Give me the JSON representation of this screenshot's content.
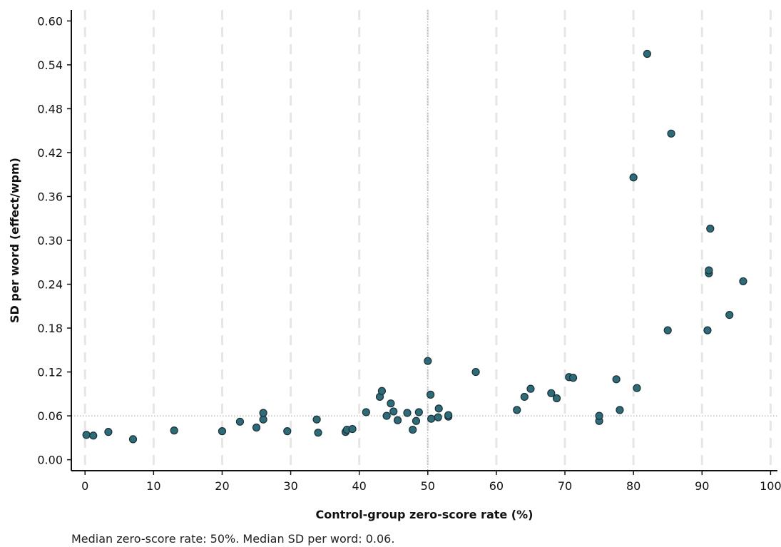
{
  "chart_data": {
    "type": "scatter",
    "xlabel": "Control-group zero-score rate (%)",
    "ylabel": "SD per word (effect/wpm)",
    "xlim": [
      -2,
      101
    ],
    "ylim": [
      -0.015,
      0.615
    ],
    "x_ticks": [
      0,
      10,
      20,
      30,
      40,
      50,
      60,
      70,
      80,
      90,
      100
    ],
    "x_tick_labels": [
      "0",
      "10",
      "20",
      "30",
      "40",
      "50",
      "60",
      "70",
      "80",
      "90",
      "100"
    ],
    "y_ticks": [
      0.0,
      0.06,
      0.12,
      0.18,
      0.24,
      0.3,
      0.36,
      0.42,
      0.48,
      0.54,
      0.6
    ],
    "y_tick_labels": [
      "0.00",
      "0.06",
      "0.12",
      "0.18",
      "0.24",
      "0.30",
      "0.36",
      "0.42",
      "0.48",
      "0.54",
      "0.60"
    ],
    "grid": "vertical dashed at x ticks",
    "reference_lines": {
      "median_x": 50,
      "median_y": 0.06
    },
    "point_color": "#2e6b78",
    "point_edge_color": "#1a2f36",
    "caption": "Median zero-score rate: 50%. Median SD per word: 0.06.",
    "points": [
      [
        0.2,
        0.034
      ],
      [
        1.2,
        0.033
      ],
      [
        3.4,
        0.038
      ],
      [
        7.0,
        0.028
      ],
      [
        13.0,
        0.04
      ],
      [
        20.0,
        0.039
      ],
      [
        22.6,
        0.052
      ],
      [
        25.0,
        0.044
      ],
      [
        26.0,
        0.055
      ],
      [
        26.0,
        0.064
      ],
      [
        29.5,
        0.039
      ],
      [
        33.8,
        0.055
      ],
      [
        34.0,
        0.037
      ],
      [
        38.0,
        0.038
      ],
      [
        38.2,
        0.041
      ],
      [
        39.0,
        0.042
      ],
      [
        41.0,
        0.065
      ],
      [
        43.0,
        0.086
      ],
      [
        43.3,
        0.094
      ],
      [
        44.0,
        0.06
      ],
      [
        44.6,
        0.077
      ],
      [
        45.0,
        0.066
      ],
      [
        45.6,
        0.054
      ],
      [
        47.0,
        0.064
      ],
      [
        47.8,
        0.041
      ],
      [
        48.3,
        0.053
      ],
      [
        48.7,
        0.065
      ],
      [
        50.0,
        0.135
      ],
      [
        50.4,
        0.089
      ],
      [
        50.5,
        0.056
      ],
      [
        51.5,
        0.058
      ],
      [
        51.6,
        0.07
      ],
      [
        53.0,
        0.059
      ],
      [
        53.0,
        0.061
      ],
      [
        57.0,
        0.12
      ],
      [
        63.0,
        0.068
      ],
      [
        64.1,
        0.086
      ],
      [
        65.0,
        0.097
      ],
      [
        68.0,
        0.091
      ],
      [
        68.8,
        0.084
      ],
      [
        70.6,
        0.113
      ],
      [
        71.2,
        0.112
      ],
      [
        75.0,
        0.053
      ],
      [
        75.0,
        0.06
      ],
      [
        77.5,
        0.11
      ],
      [
        78.0,
        0.068
      ],
      [
        80.0,
        0.386
      ],
      [
        80.5,
        0.098
      ],
      [
        82.0,
        0.555
      ],
      [
        85.0,
        0.177
      ],
      [
        85.5,
        0.446
      ],
      [
        90.8,
        0.177
      ],
      [
        91.0,
        0.255
      ],
      [
        91.0,
        0.259
      ],
      [
        91.2,
        0.316
      ],
      [
        94.0,
        0.198
      ],
      [
        96.0,
        0.244
      ]
    ]
  }
}
